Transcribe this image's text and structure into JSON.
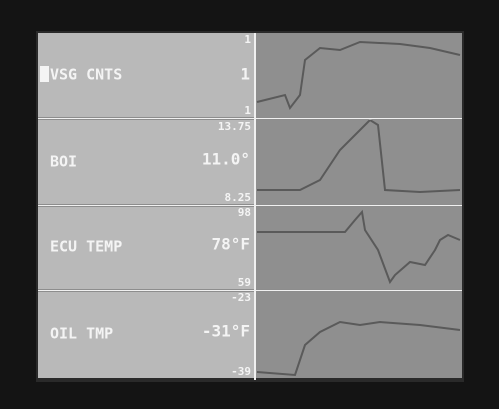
{
  "panels": [
    {
      "label": "VSG CNTS",
      "value": "1",
      "max": "1",
      "min": "1"
    },
    {
      "label": "BOI",
      "value": "11.0°",
      "max": "13.75",
      "min": "8.25"
    },
    {
      "label": "ECU TEMP",
      "value": "78°F",
      "max": "98",
      "min": "59"
    },
    {
      "label": "OIL TMP",
      "value": "-31°F",
      "max": "-23",
      "min": "-39"
    }
  ]
}
